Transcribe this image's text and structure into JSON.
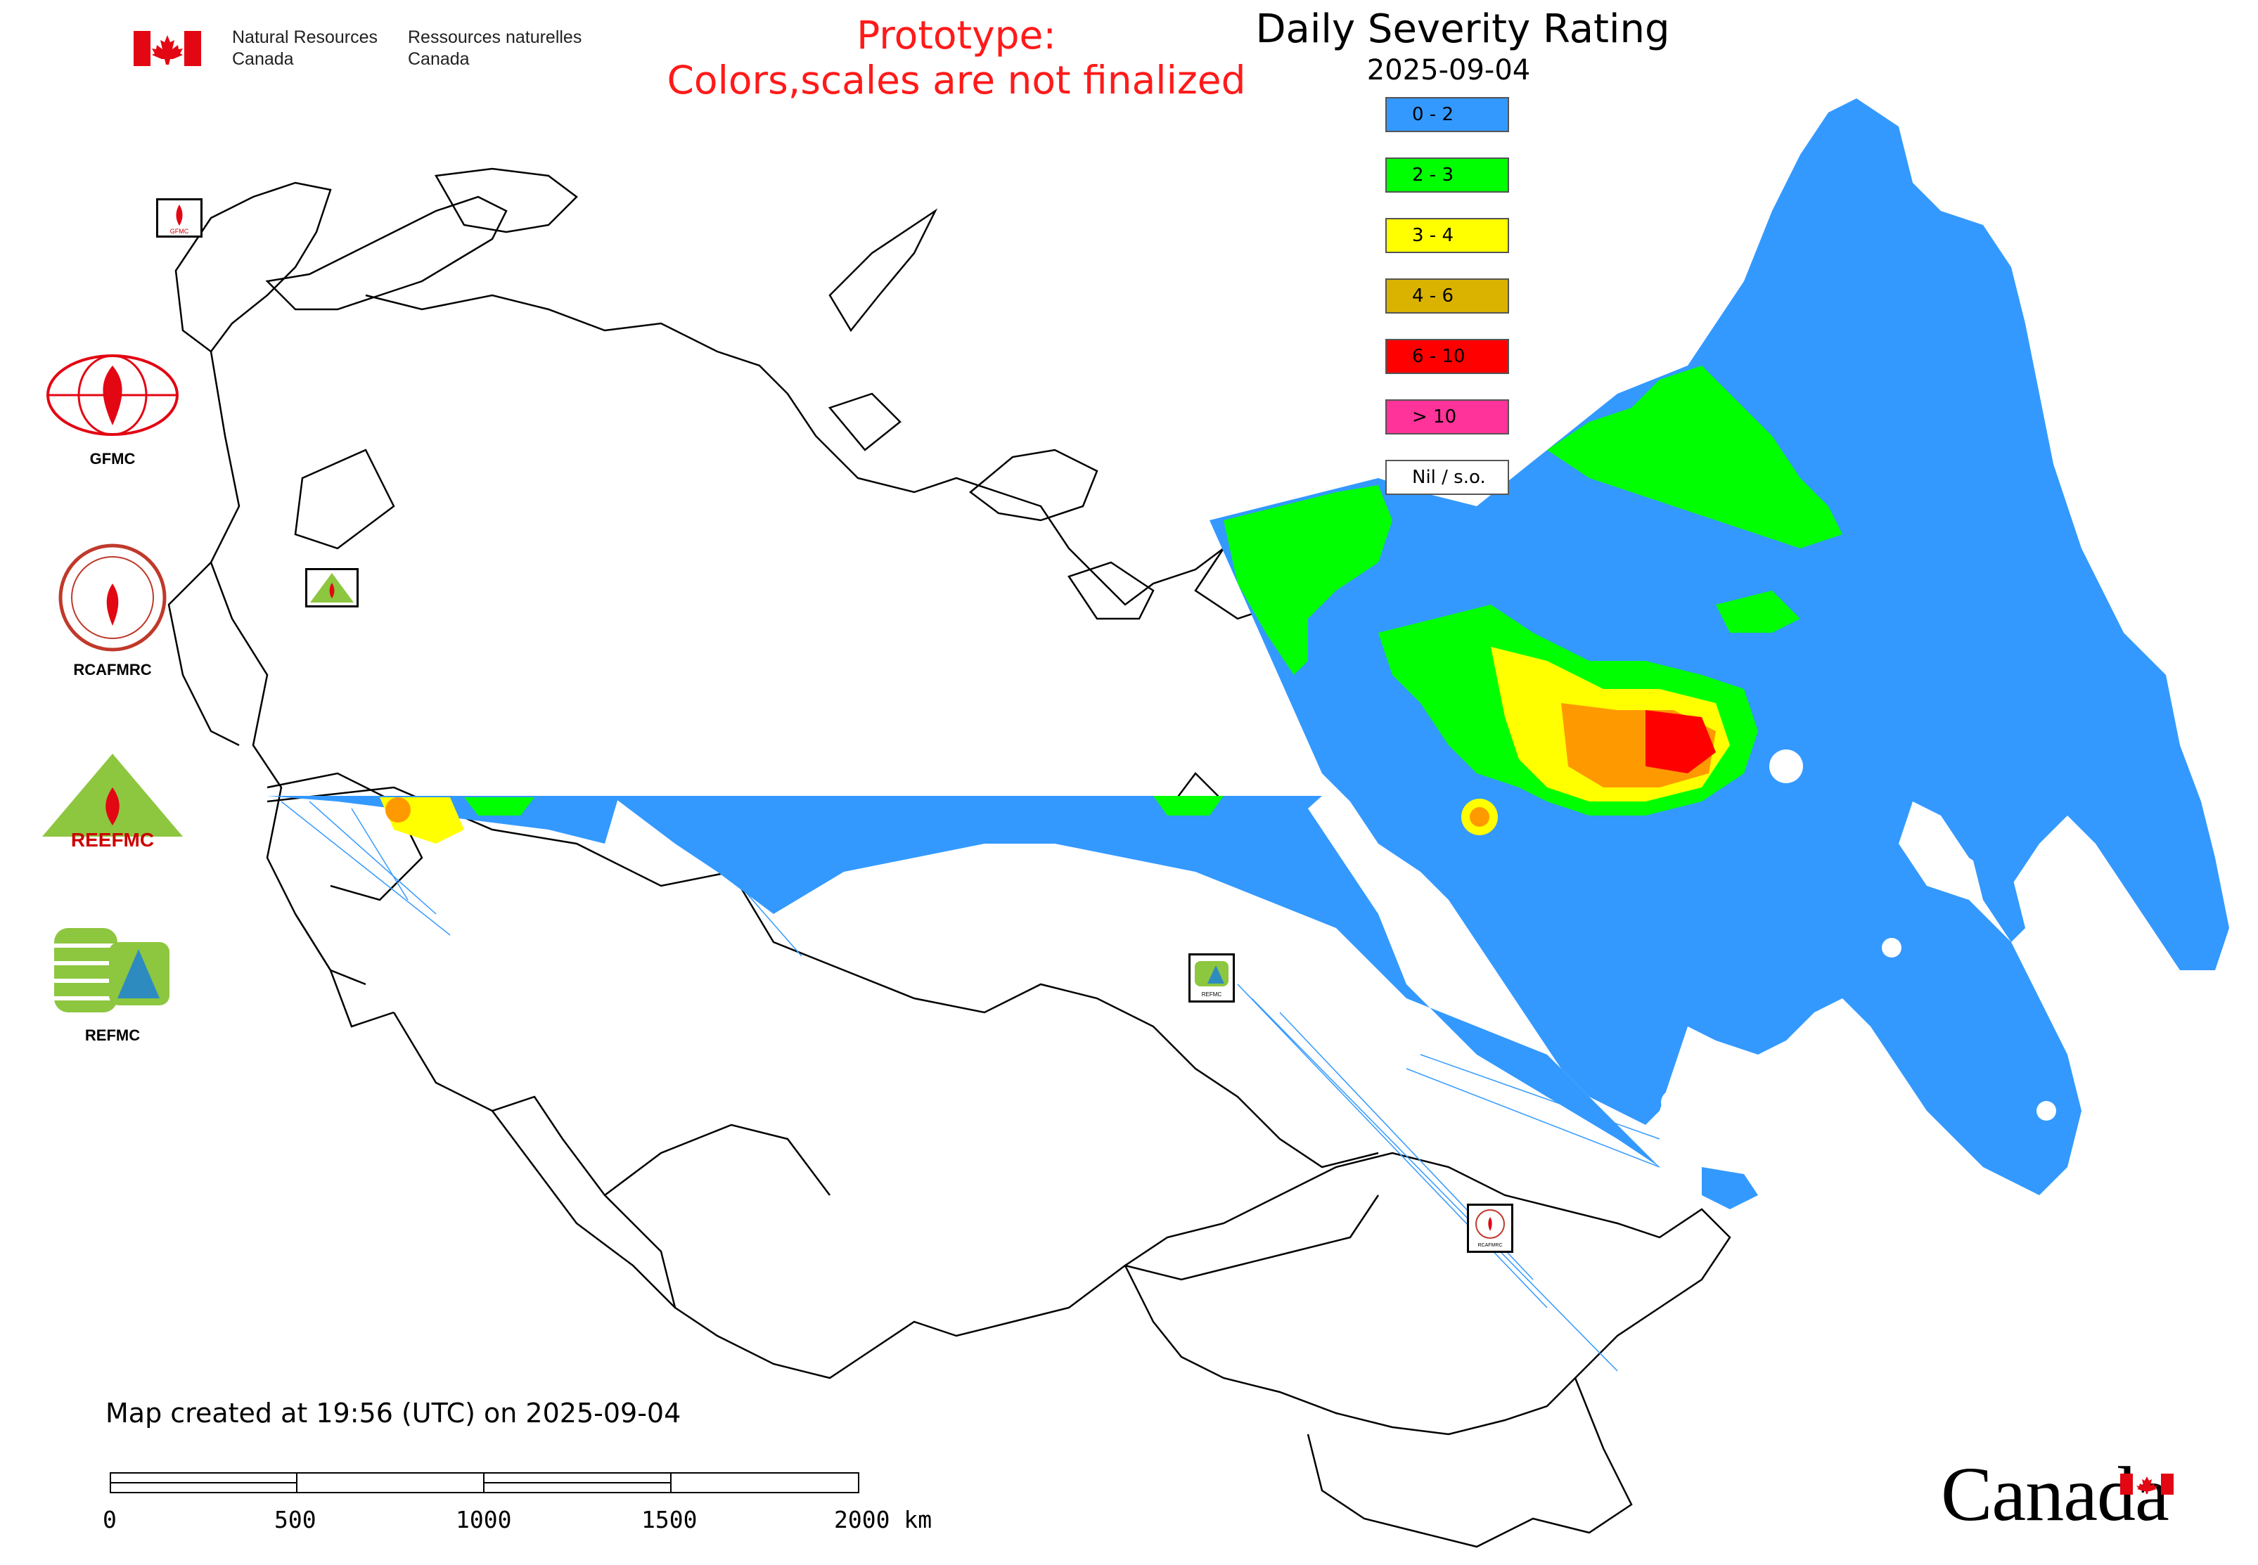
{
  "header": {
    "dept_en_line1": "Natural Resources",
    "dept_en_line2": "Canada",
    "dept_fr_line1": "Ressources naturelles",
    "dept_fr_line2": "Canada",
    "prototype_line1": "Prototype:",
    "prototype_line2": "Colors,scales are not finalized"
  },
  "map": {
    "title": "Daily Severity Rating",
    "date": "2025-09-04",
    "legend": [
      {
        "label": "0 - 2",
        "color": "#3399ff"
      },
      {
        "label": "2 - 3",
        "color": "#00ff00"
      },
      {
        "label": "3 - 4",
        "color": "#ffff00"
      },
      {
        "label": "4 - 6",
        "color": "#d9b300"
      },
      {
        "label": "6 - 10",
        "color": "#ff0000"
      },
      {
        "label": "> 10",
        "color": "#ff3399"
      },
      {
        "label": "Nil / s.o.",
        "color": "#ffffff"
      }
    ],
    "footer": "Map created at 19:56 (UTC) on 2025-09-04"
  },
  "side_logos": [
    {
      "label": "GFMC",
      "icon": "gfmc-logo-icon"
    },
    {
      "label": "RCAFMRC",
      "icon": "rcafmrc-logo-icon"
    },
    {
      "label": "",
      "icon": "reefmc-logo-icon"
    },
    {
      "label": "REFMC",
      "icon": "refmc-logo-icon"
    }
  ],
  "map_logo_labels": {
    "gfmc": "GFMC",
    "refmc": "REFMC",
    "rcafmrc": "RCAFMRC"
  },
  "reefmc_text": "REEFMC",
  "scale": {
    "labels": [
      "0",
      "500",
      "1000",
      "1500",
      "2000 km"
    ]
  },
  "wordmark": "Canada",
  "colors": {
    "prototype_text": "#ff1a1a",
    "flag_red": "#e30613"
  }
}
